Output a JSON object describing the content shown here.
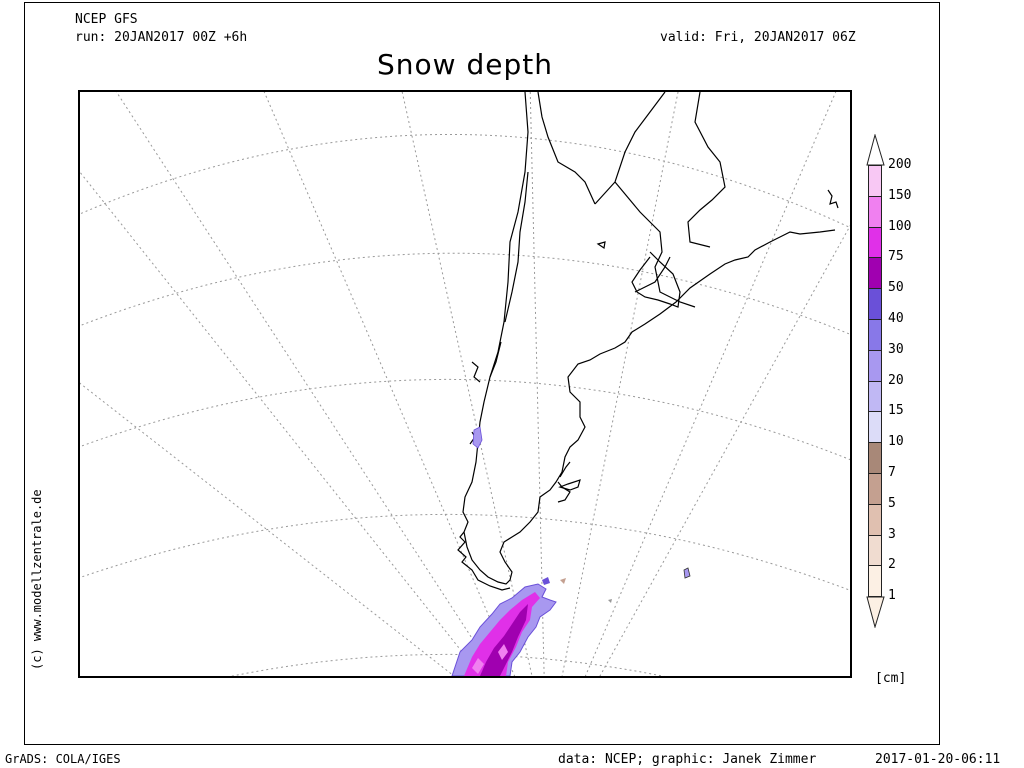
{
  "header": {
    "model": "NCEP GFS",
    "run": "run: 20JAN2017 00Z +6h",
    "valid": "valid: Fri, 20JAN2017 06Z",
    "title": "Snow depth"
  },
  "credit_vertical": "(c) www.modellzentrale.de",
  "footer": {
    "left": "GrADS: COLA/IGES",
    "middle": "data: NCEP; graphic: Janek Zimmer",
    "right": "2017-01-20-06:11"
  },
  "legend": {
    "unit": "[cm]",
    "levels": [
      {
        "label": "200",
        "color": "#ffffff"
      },
      {
        "label": "150",
        "color": "#f8c8f4"
      },
      {
        "label": "100",
        "color": "#f080f0"
      },
      {
        "label": "75",
        "color": "#e030e8"
      },
      {
        "label": "50",
        "color": "#a000b0"
      },
      {
        "label": "40",
        "color": "#6a50d8"
      },
      {
        "label": "30",
        "color": "#8878e8"
      },
      {
        "label": "20",
        "color": "#a898f0"
      },
      {
        "label": "15",
        "color": "#c0b8f4"
      },
      {
        "label": "10",
        "color": "#dcdcf8"
      },
      {
        "label": "7",
        "color": "#a88878"
      },
      {
        "label": "5",
        "color": "#c4a090"
      },
      {
        "label": "3",
        "color": "#e0c0b0"
      },
      {
        "label": "2",
        "color": "#f0dcd0"
      },
      {
        "label": "1",
        "color": "#fcf0e4"
      }
    ]
  }
}
